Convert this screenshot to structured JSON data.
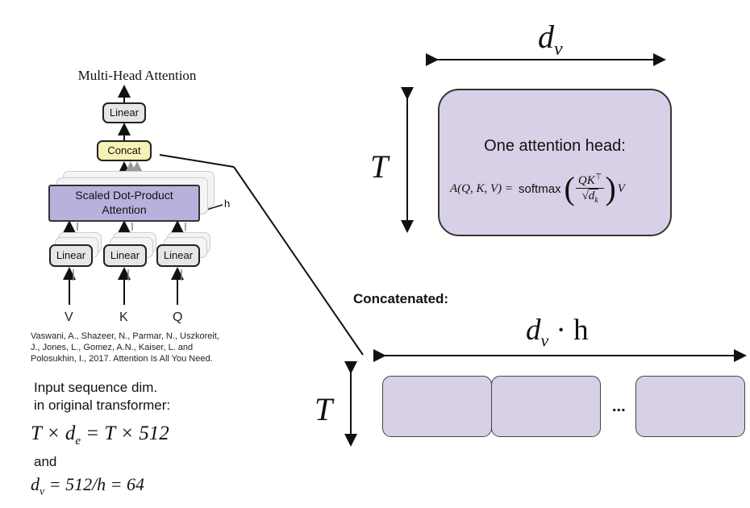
{
  "diagram": {
    "title": "Multi-Head Attention",
    "linear_top": "Linear",
    "concat": "Concat",
    "sdpa_line1": "Scaled Dot-Product",
    "sdpa_line2": "Attention",
    "h_label": "h",
    "linear_v": "Linear",
    "linear_k": "Linear",
    "linear_q": "Linear",
    "input_v": "V",
    "input_k": "K",
    "input_q": "Q"
  },
  "citation": {
    "line1": "Vaswani, A., Shazeer, N., Parmar, N., Uszkoreit,",
    "line2": "J., Jones, L., Gomez, A.N., Kaiser, L. and",
    "line3": "Polosukhin, I., 2017. Attention Is All You Need."
  },
  "notes": {
    "line1": "Input sequence dim.",
    "line2": "in original transformer:",
    "math1": "T × d",
    "math1_sub": "e",
    "math1_rest": " = T × 512",
    "and": "and",
    "math2": "d",
    "math2_sub": "v",
    "math2_rest": " = 512/h = 64"
  },
  "head": {
    "dim_label": "d",
    "dim_sub": "v",
    "t_label": "T",
    "title": "One attention head:",
    "formula_lhs": "A(Q, K, V) =",
    "softmax": "softmax",
    "numerator": "QK",
    "numerator_sup": "⊤",
    "sqrt_symbol": "√",
    "denominator": "d",
    "denominator_sub": "k",
    "paren_left": "(",
    "paren_right": ")",
    "formula_tail": "V"
  },
  "concatenated": {
    "label": "Concatenated:",
    "dim_label": "d",
    "dim_sub": "v",
    "dim_rest": " · h",
    "t_label": "T",
    "ellipsis": "..."
  }
}
